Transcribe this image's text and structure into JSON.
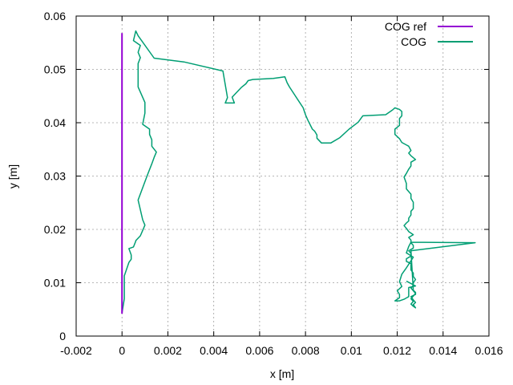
{
  "chart_data": {
    "type": "line",
    "xlabel": "x [m]",
    "ylabel": "y [m]",
    "xlim": [
      -0.002,
      0.016
    ],
    "ylim": [
      0,
      0.06
    ],
    "xticks": [
      -0.002,
      0,
      0.002,
      0.004,
      0.006,
      0.008,
      0.01,
      0.012,
      0.014,
      0.016
    ],
    "xtick_labels": [
      "-0.002",
      "0",
      "0.002",
      "0.004",
      "0.006",
      "0.008",
      "0.01",
      "0.012",
      "0.014",
      "0.016"
    ],
    "yticks": [
      0,
      0.01,
      0.02,
      0.03,
      0.04,
      0.05,
      0.06
    ],
    "ytick_labels": [
      "0",
      "0.01",
      "0.02",
      "0.03",
      "0.04",
      "0.05",
      "0.06"
    ],
    "grid": true,
    "legend_position": "top-right",
    "series": [
      {
        "name": "COG ref",
        "color": "#9400d3",
        "x": [
          0,
          0
        ],
        "y": [
          0.0042,
          0.0568
        ]
      },
      {
        "name": "COG",
        "color": "#009e73",
        "x": [
          0,
          0.0001,
          0.0001,
          0.0003,
          0.0004,
          0.0004,
          0.0003,
          0.0005,
          0.0006,
          0.0006,
          0.0008,
          0.0009,
          0.001,
          0.0009,
          0.0007,
          0.0011,
          0.0013,
          0.0014,
          0.0015,
          0.0013,
          0.0013,
          0.0012,
          0.0012,
          0.0009,
          0.001,
          0.001,
          0.0007,
          0.0007,
          0.0007,
          0.0008,
          0.0007,
          0.0008,
          0.0005,
          0.0006,
          0.0007,
          0.0014,
          0.0027,
          0.0044,
          0.0046,
          0.0045,
          0.0049,
          0.0048,
          0.0052,
          0.0054,
          0.0055,
          0.0055,
          0.0057,
          0.0066,
          0.0071,
          0.0072,
          0.0073,
          0.0079,
          0.008,
          0.0081,
          0.0083,
          0.0084,
          0.0085,
          0.0085,
          0.0087,
          0.0091,
          0.0095,
          0.0099,
          0.0103,
          0.0105,
          0.0115,
          0.0118,
          0.0119,
          0.0121,
          0.0122,
          0.0122,
          0.0121,
          0.0121,
          0.0119,
          0.0119,
          0.0121,
          0.0122,
          0.0125,
          0.0126,
          0.0125,
          0.0126,
          0.0128,
          0.0126,
          0.0126,
          0.0125,
          0.0124,
          0.0123,
          0.0124,
          0.0124,
          0.0126,
          0.0126,
          0.0127,
          0.0127,
          0.0127,
          0.0126,
          0.0126,
          0.0125,
          0.0125,
          0.0124,
          0.0123,
          0.0124,
          0.0125,
          0.0127,
          0.0125,
          0.0126,
          0.0126,
          0.0127,
          0.0127,
          0.0125,
          0.0126,
          0.0126,
          0.0124,
          0.0124,
          0.0126,
          0.0126,
          0.0126,
          0.0127,
          0.0127,
          0.0128,
          0.0127,
          0.0127,
          0.0126,
          0.0127,
          0.0128,
          0.0127,
          0.0126,
          0.0127,
          0.0126,
          0.0127,
          0.0128,
          0.0127,
          0.0128,
          0.0127,
          0.0126,
          0.0128,
          0.0128,
          0.0127,
          0.0126,
          0.0154,
          0.0126,
          0.0125,
          0.0124,
          0.0127,
          0.0126,
          0.0124,
          0.0122,
          0.0121,
          0.0122,
          0.012,
          0.0121,
          0.0121,
          0.0119,
          0.0121,
          0.0123,
          0.0125,
          0.0125,
          0.0125,
          0.0128,
          0.0124
        ],
        "y": [
          0.0043,
          0.007,
          0.0113,
          0.0138,
          0.0144,
          0.0152,
          0.0164,
          0.0167,
          0.0178,
          0.0179,
          0.0188,
          0.0198,
          0.0208,
          0.0218,
          0.0255,
          0.0301,
          0.0323,
          0.0335,
          0.0345,
          0.0356,
          0.0368,
          0.0378,
          0.0388,
          0.0397,
          0.0418,
          0.0438,
          0.0467,
          0.0495,
          0.0511,
          0.0522,
          0.0532,
          0.0545,
          0.0554,
          0.0572,
          0.0563,
          0.0521,
          0.0514,
          0.0497,
          0.0447,
          0.0437,
          0.0437,
          0.0448,
          0.0466,
          0.0473,
          0.0479,
          0.0479,
          0.0481,
          0.0483,
          0.0486,
          0.0475,
          0.0467,
          0.0428,
          0.0415,
          0.0405,
          0.0388,
          0.0384,
          0.0377,
          0.0371,
          0.0362,
          0.0362,
          0.0372,
          0.0388,
          0.0401,
          0.0413,
          0.0415,
          0.0424,
          0.0428,
          0.0425,
          0.0421,
          0.0413,
          0.0408,
          0.0395,
          0.0388,
          0.0378,
          0.037,
          0.0363,
          0.0356,
          0.0348,
          0.0343,
          0.0338,
          0.0331,
          0.0326,
          0.0319,
          0.0313,
          0.0305,
          0.0298,
          0.0286,
          0.0276,
          0.0266,
          0.0258,
          0.0251,
          0.0245,
          0.0239,
          0.0234,
          0.0227,
          0.0221,
          0.0216,
          0.0212,
          0.0207,
          0.0202,
          0.0196,
          0.019,
          0.0185,
          0.018,
          0.0175,
          0.017,
          0.0165,
          0.016,
          0.0155,
          0.015,
          0.0145,
          0.014,
          0.0136,
          0.013,
          0.0124,
          0.0118,
          0.0112,
          0.0106,
          0.01,
          0.0095,
          0.009,
          0.0085,
          0.008,
          0.0075,
          0.007,
          0.0065,
          0.006,
          0.0056,
          0.0053,
          0.0059,
          0.0063,
          0.0068,
          0.0074,
          0.0078,
          0.0082,
          0.0086,
          0.016,
          0.0175,
          0.0176,
          0.0168,
          0.0156,
          0.0148,
          0.0141,
          0.0128,
          0.0116,
          0.0102,
          0.0093,
          0.0085,
          0.0078,
          0.0072,
          0.0066,
          0.0066,
          0.0069,
          0.0074,
          0.0084,
          0.0091,
          0.0094,
          0.0103
        ]
      }
    ]
  }
}
